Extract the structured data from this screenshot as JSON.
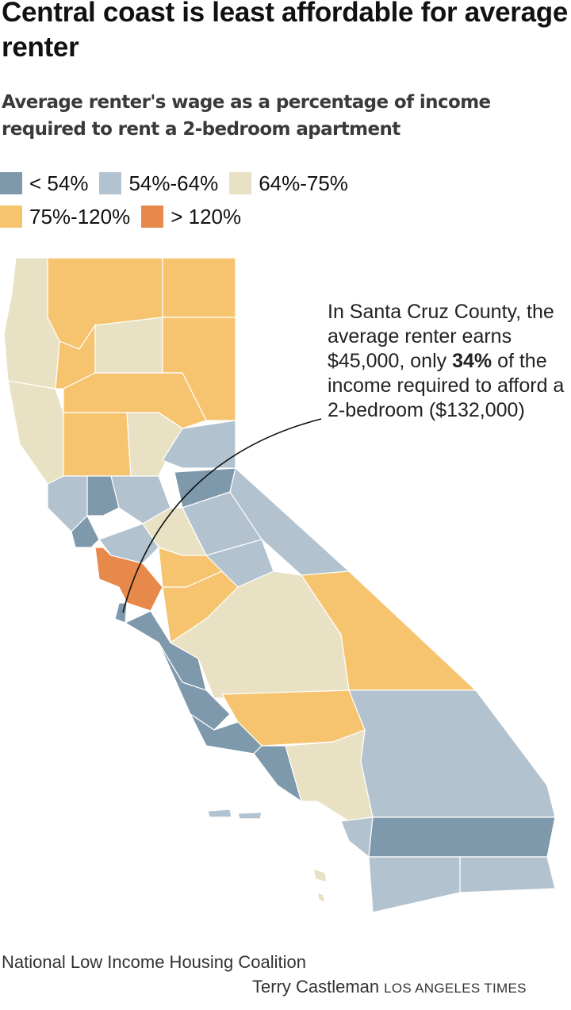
{
  "title": "Central coast is least affordable for average renter",
  "subtitle": "Average renter's wage as a percentage of income required to rent a 2-bedroom apartment",
  "legend": [
    {
      "label": "< 54%",
      "color": "#7f99ac"
    },
    {
      "label": "54%-64%",
      "color": "#b2c2cf"
    },
    {
      "label": "64%-75%",
      "color": "#e9e1c3"
    },
    {
      "label": "75%-120%",
      "color": "#f6c46f"
    },
    {
      "label": "> 120%",
      "color": "#e8894c"
    }
  ],
  "annotation": {
    "before": "In Santa Cruz County, the average renter earns $45,000, only ",
    "bold": "34%",
    "after": " of the income required to afford a 2-bedroom ($132,000)"
  },
  "source": "National Low Income Housing Coalition",
  "credit": "Terry Castleman",
  "brand": "LOS ANGELES TIMES"
}
